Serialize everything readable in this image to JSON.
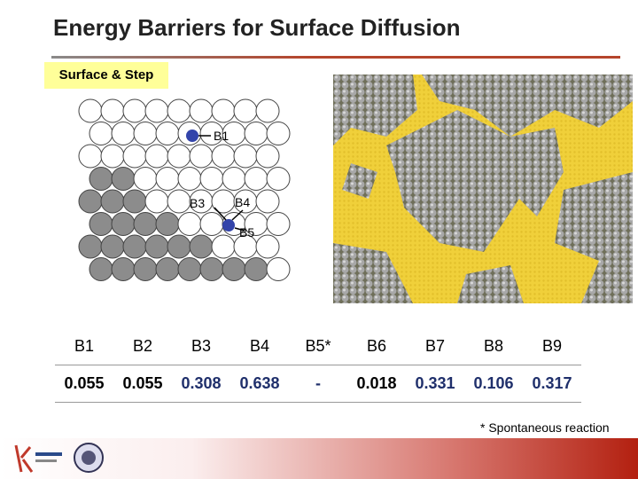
{
  "header": {
    "title": "Energy Barriers for Surface Diffusion",
    "section_label": "Surface & Step"
  },
  "diagram": {
    "labels": [
      "B1",
      "B3",
      "B4",
      "B5"
    ]
  },
  "table": {
    "columns": [
      "B1",
      "B2",
      "B3",
      "B4",
      "B5*",
      "B6",
      "B7",
      "B8",
      "B9"
    ],
    "rows": [
      [
        "0.055",
        "0.055",
        "0.308",
        "0.638",
        "-",
        "0.018",
        "0.331",
        "0.106",
        "0.317"
      ]
    ]
  },
  "footnote": "* Spontaneous reaction"
}
